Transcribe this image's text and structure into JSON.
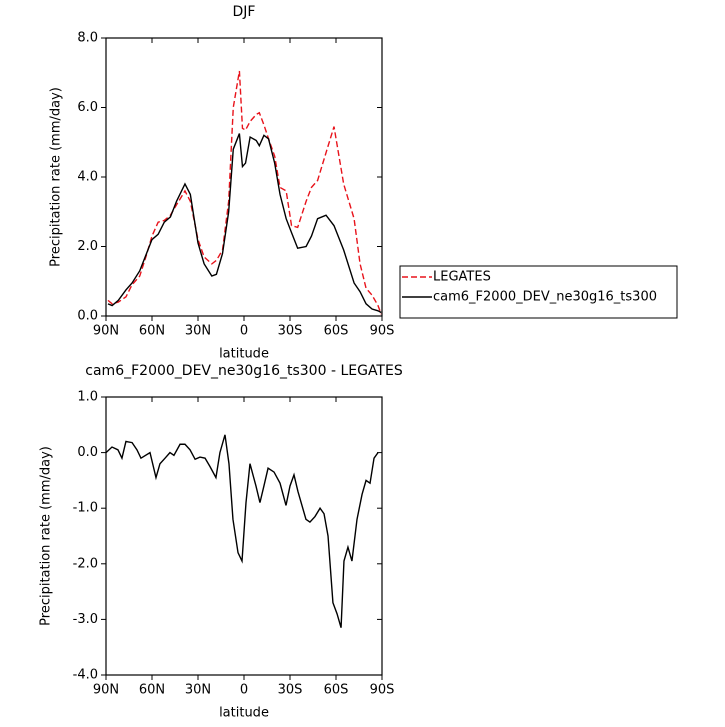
{
  "chart_data": [
    {
      "type": "line",
      "title": "DJF",
      "xlabel": "latitude",
      "ylabel": "Precipitation rate (mm/day)",
      "x": [
        88.7,
        86,
        82,
        77,
        73,
        68,
        64,
        60,
        56,
        52,
        48,
        44,
        38.5,
        35,
        30,
        26,
        21,
        18,
        14,
        10,
        7,
        3,
        1,
        -1,
        -4,
        -8,
        -10,
        -13,
        -16,
        -20,
        -23.5,
        -27.5,
        -31,
        -35,
        -40.5,
        -44,
        -48,
        -53.5,
        -58.7,
        -65,
        -71.8,
        -75.7,
        -79.6,
        -83.5,
        -87.4,
        -89.5
      ],
      "series": [
        {
          "name": "LEGATES",
          "color": "#e8131b",
          "linestyle": "dashed",
          "values": [
            0.45,
            0.35,
            0.4,
            0.55,
            0.9,
            1.15,
            1.7,
            2.3,
            2.7,
            2.75,
            2.9,
            3.2,
            3.6,
            3.3,
            2.2,
            1.7,
            1.5,
            1.6,
            1.9,
            3.3,
            6.0,
            7.05,
            5.4,
            5.35,
            5.6,
            5.8,
            5.85,
            5.5,
            5.1,
            4.6,
            3.7,
            3.6,
            2.6,
            2.55,
            3.3,
            3.7,
            3.9,
            4.7,
            5.45,
            3.8,
            2.8,
            1.5,
            0.8,
            0.6,
            0.3,
            0.05
          ]
        },
        {
          "name": "cam6_F2000_DEV_ne30g16_ts300",
          "color": "#000000",
          "linestyle": "solid",
          "values": [
            0.35,
            0.3,
            0.45,
            0.75,
            0.95,
            1.3,
            1.75,
            2.2,
            2.35,
            2.7,
            2.85,
            3.3,
            3.8,
            3.5,
            2.1,
            1.5,
            1.15,
            1.2,
            1.8,
            3.0,
            4.8,
            5.25,
            4.3,
            4.4,
            5.15,
            5.05,
            4.9,
            5.2,
            5.1,
            4.4,
            3.5,
            2.8,
            2.4,
            1.95,
            2.0,
            2.3,
            2.8,
            2.9,
            2.6,
            1.9,
            0.95,
            0.7,
            0.35,
            0.2,
            0.15,
            0.1
          ]
        }
      ],
      "xlim": [
        90,
        -90
      ],
      "xticks": [
        {
          "value": 90,
          "label": "90N"
        },
        {
          "value": 60,
          "label": "60N"
        },
        {
          "value": 30,
          "label": "30N"
        },
        0,
        {
          "value": -30,
          "label": "30S"
        },
        {
          "value": -60,
          "label": "60S"
        },
        {
          "value": -90,
          "label": "90S"
        }
      ],
      "ylim": [
        0,
        8
      ],
      "yticks": [
        {
          "value": 0,
          "label": "0.0"
        },
        {
          "value": 2,
          "label": "2.0"
        },
        {
          "value": 4,
          "label": "4.0"
        },
        {
          "value": 6,
          "label": "6.0"
        },
        {
          "value": 8,
          "label": "8.0"
        }
      ],
      "legend": "outside right"
    },
    {
      "type": "line",
      "title": "cam6_F2000_DEV_ne30g16_ts300 - LEGATES",
      "xlabel": "latitude",
      "ylabel": "Precipitation rate (mm/day)",
      "x": [
        90,
        86.1,
        82.2,
        79.6,
        77.0,
        73.0,
        69.8,
        67.2,
        61.3,
        57.4,
        54.8,
        51.5,
        48.3,
        45.7,
        41.7,
        38.5,
        35.2,
        31.9,
        28.7,
        25.4,
        22.2,
        18.3,
        15.7,
        12.4,
        9.8,
        7.2,
        3.9,
        1.3,
        -1.3,
        -3.9,
        -7.8,
        -10.4,
        -13.0,
        -15.7,
        -19.6,
        -23.5,
        -27.4,
        -30.0,
        -32.6,
        -35.2,
        -40.4,
        -43.0,
        -46.3,
        -49.6,
        -52.2,
        -54.8,
        -58.0,
        -60.7,
        -63.3,
        -65.2,
        -67.8,
        -70.4,
        -73.7,
        -77.0,
        -79.6,
        -82.2,
        -84.8,
        -87.4
      ],
      "values": [
        0.0,
        0.1,
        0.05,
        -0.1,
        0.2,
        0.18,
        0.05,
        -0.1,
        0.0,
        -0.45,
        -0.2,
        -0.1,
        0.0,
        -0.05,
        0.15,
        0.15,
        0.05,
        -0.12,
        -0.08,
        -0.1,
        -0.25,
        -0.45,
        0.0,
        0.32,
        -0.2,
        -1.2,
        -1.8,
        -1.95,
        -0.9,
        -0.2,
        -0.6,
        -0.9,
        -0.6,
        -0.28,
        -0.35,
        -0.55,
        -0.95,
        -0.6,
        -0.4,
        -0.7,
        -1.2,
        -1.25,
        -1.15,
        -1.0,
        -1.1,
        -1.5,
        -2.7,
        -2.9,
        -3.15,
        -1.95,
        -1.7,
        -1.95,
        -1.2,
        -0.75,
        -0.5,
        -0.55,
        -0.1,
        0.0
      ],
      "color": "#000000",
      "xlim": [
        90,
        -90
      ],
      "xticks": [
        {
          "value": 90,
          "label": "90N"
        },
        {
          "value": 60,
          "label": "60N"
        },
        {
          "value": 30,
          "label": "30N"
        },
        0,
        {
          "value": -30,
          "label": "30S"
        },
        {
          "value": -60,
          "label": "60S"
        },
        {
          "value": -90,
          "label": "90S"
        }
      ],
      "ylim": [
        -4,
        1
      ],
      "yticks": [
        {
          "value": -4,
          "label": "-4.0"
        },
        {
          "value": -3,
          "label": "-3.0"
        },
        {
          "value": -2,
          "label": "-2.0"
        },
        {
          "value": -1,
          "label": "-1.0"
        },
        {
          "value": 0,
          "label": "0.0"
        },
        {
          "value": 1,
          "label": "1.0"
        }
      ]
    }
  ]
}
